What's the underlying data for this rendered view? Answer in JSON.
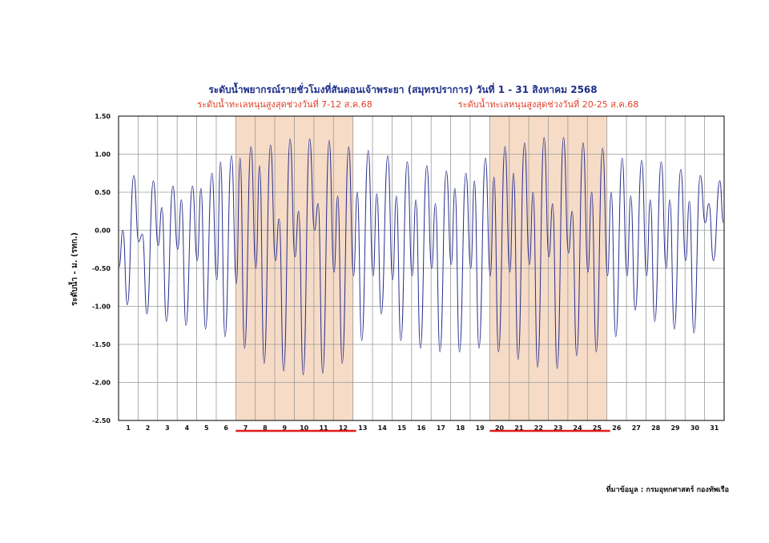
{
  "chart_data": {
    "type": "line",
    "title": "ระดับน้ำพยากรณ์รายชั่วโมงที่สันดอนเจ้าพระยา (สมุทรปราการ) วันที่ 1 - 31 สิงหาคม 2568",
    "ylabel": "ระดับน้ำ - ม. (รทก.)",
    "xlabel": "",
    "ylim": [
      -2.5,
      1.5
    ],
    "yticks": [
      "1.50",
      "1.00",
      "0.50",
      "0.00",
      "-0.50",
      "-1.00",
      "-1.50",
      "-2.00",
      "-2.50"
    ],
    "categories": [
      "1",
      "2",
      "3",
      "4",
      "5",
      "6",
      "7",
      "8",
      "9",
      "10",
      "11",
      "12",
      "13",
      "14",
      "15",
      "16",
      "17",
      "18",
      "19",
      "20",
      "21",
      "22",
      "23",
      "24",
      "25",
      "26",
      "27",
      "28",
      "29",
      "30",
      "31"
    ],
    "grid": true,
    "line_color": "#2a2f8f",
    "highlight_color": "#f6dcc7",
    "underline_color": "#e01b1b",
    "highlights": [
      {
        "label": "ระดับน้ำทะเลหนุนสูงสุดช่วงวันที่ 7-12 ส.ค.68",
        "start_day": 7,
        "end_day": 12
      },
      {
        "label": "ระดับน้ำทะเลหนุนสูงสุดช่วงวันที่ 20-25 ส.ค.68",
        "start_day": 20,
        "end_day": 25
      }
    ],
    "daily_extremes": [
      {
        "day": "1",
        "highs": [
          0.72,
          0.0
        ],
        "lows": [
          -0.98,
          -0.48
        ]
      },
      {
        "day": "2",
        "highs": [
          0.65,
          -0.05
        ],
        "lows": [
          -1.1,
          -0.15
        ]
      },
      {
        "day": "3",
        "highs": [
          0.58,
          0.3
        ],
        "lows": [
          -1.2,
          -0.2
        ]
      },
      {
        "day": "4",
        "highs": [
          0.58,
          0.4
        ],
        "lows": [
          -1.25,
          -0.25
        ]
      },
      {
        "day": "5",
        "highs": [
          0.75,
          0.55
        ],
        "lows": [
          -1.3,
          -0.4
        ]
      },
      {
        "day": "6",
        "highs": [
          0.98,
          0.9
        ],
        "lows": [
          -1.4,
          -0.65
        ]
      },
      {
        "day": "7",
        "highs": [
          1.1,
          0.95
        ],
        "lows": [
          -1.55,
          -0.7
        ]
      },
      {
        "day": "8",
        "highs": [
          1.12,
          0.85
        ],
        "lows": [
          -1.75,
          -0.5
        ]
      },
      {
        "day": "9",
        "highs": [
          1.2,
          0.15
        ],
        "lows": [
          -1.85,
          -0.4
        ]
      },
      {
        "day": "10",
        "highs": [
          1.2,
          0.25
        ],
        "lows": [
          -1.9,
          -0.35
        ]
      },
      {
        "day": "11",
        "highs": [
          1.18,
          0.35
        ],
        "lows": [
          -1.88,
          0.0
        ]
      },
      {
        "day": "12",
        "highs": [
          1.1,
          0.45
        ],
        "lows": [
          -1.75,
          -0.55
        ]
      },
      {
        "day": "13",
        "highs": [
          1.05,
          0.5
        ],
        "lows": [
          -1.45,
          -0.6
        ]
      },
      {
        "day": "14",
        "highs": [
          0.98,
          0.48
        ],
        "lows": [
          -1.1,
          -0.6
        ]
      },
      {
        "day": "15",
        "highs": [
          0.9,
          0.45
        ],
        "lows": [
          -1.45,
          -0.65
        ]
      },
      {
        "day": "16",
        "highs": [
          0.85,
          0.4
        ],
        "lows": [
          -1.55,
          -0.6
        ]
      },
      {
        "day": "17",
        "highs": [
          0.78,
          0.35
        ],
        "lows": [
          -1.6,
          -0.5
        ]
      },
      {
        "day": "18",
        "highs": [
          0.75,
          0.55
        ],
        "lows": [
          -1.6,
          -0.45
        ]
      },
      {
        "day": "19",
        "highs": [
          0.95,
          0.65
        ],
        "lows": [
          -1.55,
          -0.5
        ]
      },
      {
        "day": "20",
        "highs": [
          1.1,
          0.7
        ],
        "lows": [
          -1.6,
          -0.6
        ]
      },
      {
        "day": "21",
        "highs": [
          1.15,
          0.75
        ],
        "lows": [
          -1.7,
          -0.55
        ]
      },
      {
        "day": "22",
        "highs": [
          1.22,
          0.5
        ],
        "lows": [
          -1.8,
          -0.45
        ]
      },
      {
        "day": "23",
        "highs": [
          1.22,
          0.35
        ],
        "lows": [
          -1.82,
          -0.35
        ]
      },
      {
        "day": "24",
        "highs": [
          1.15,
          0.25
        ],
        "lows": [
          -1.65,
          -0.3
        ]
      },
      {
        "day": "25",
        "highs": [
          1.08,
          0.5
        ],
        "lows": [
          -1.6,
          -0.55
        ]
      },
      {
        "day": "26",
        "highs": [
          0.95,
          0.5
        ],
        "lows": [
          -1.4,
          -0.6
        ]
      },
      {
        "day": "27",
        "highs": [
          0.92,
          0.45
        ],
        "lows": [
          -1.05,
          -0.6
        ]
      },
      {
        "day": "28",
        "highs": [
          0.9,
          0.4
        ],
        "lows": [
          -1.2,
          -0.6
        ]
      },
      {
        "day": "29",
        "highs": [
          0.8,
          0.4
        ],
        "lows": [
          -1.3,
          -0.5
        ]
      },
      {
        "day": "30",
        "highs": [
          0.72,
          0.38
        ],
        "lows": [
          -1.35,
          -0.4
        ]
      },
      {
        "day": "31",
        "highs": [
          0.65,
          0.35
        ],
        "lows": [
          -0.4,
          0.1
        ]
      }
    ]
  },
  "source_note": "ที่มาข้อมูล : กรมอุทกศาสตร์ กองทัพเรือ"
}
